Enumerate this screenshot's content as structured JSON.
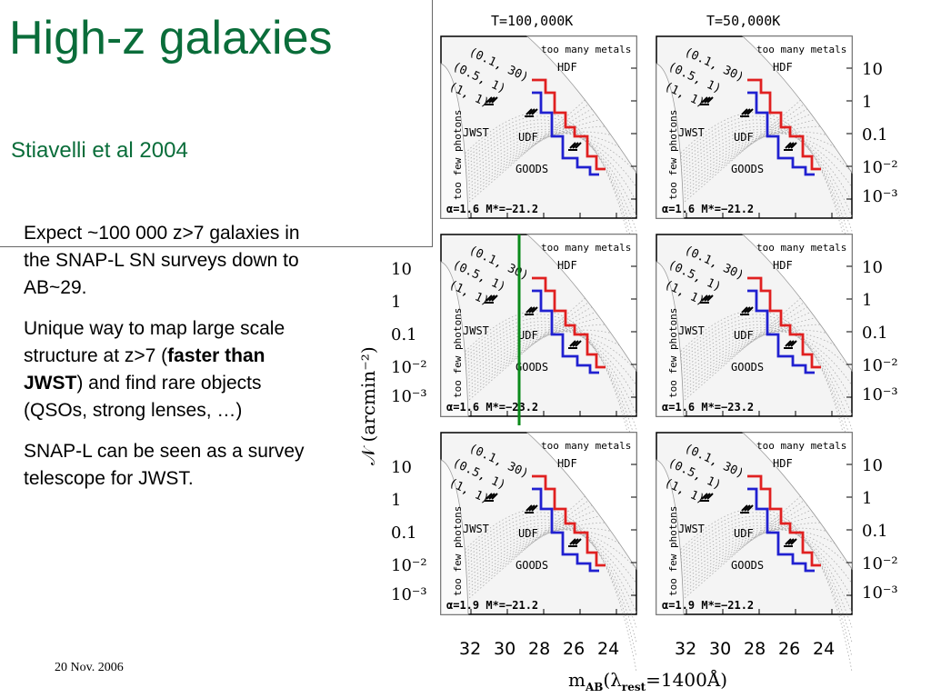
{
  "slide": {
    "title": "High-z galaxies",
    "subtitle": "Stiavelli et al 2004",
    "date": "20 Nov. 2006",
    "body": {
      "para1": "Expect ~100 000  z>7 galaxies in the SNAP-L SN surveys down to AB~29.",
      "para2_pre": "Unique way to map large scale structure at z>7 (",
      "para2_bold": "faster than JWST",
      "para2_post": ") and find rare objects (QSOs, strong lenses, …)",
      "para3": "SNAP-L can be seen as a survey telescope for JWST."
    }
  },
  "figure": {
    "col_headers": [
      "T=100,000K",
      "T=50,000K"
    ],
    "y_ticks": [
      "10",
      "1",
      "0.1",
      "10⁻²",
      "10⁻³"
    ],
    "x_ticks": [
      "32",
      "30",
      "28",
      "26",
      "24"
    ],
    "y_axis_label": "𝒩 (arcmin⁻²)",
    "x_axis_label": "m",
    "x_axis_sub": "AB",
    "x_axis_rest": "(λ",
    "x_axis_rest_sub": "rest",
    "x_axis_end": "=1400Å)",
    "panel_labels": {
      "too_many_metals": "too many metals",
      "too_few_photons": "too few photons",
      "hdf": "HDF",
      "udf": "UDF",
      "goods": "GOODS",
      "jwst": "JWST",
      "imf1": "(0.1, 30)",
      "imf2": "(0.5, 1)",
      "imf3": "(1, 1)"
    },
    "row_params": [
      "α=1.6  M*=−21.2",
      "α=1.6  M*=−23.2",
      "α=1.9  M*=−21.2"
    ],
    "colors": {
      "hdf_line": "#e02020",
      "udf_line": "#2020d0",
      "marker_line": "#0a8a1a",
      "title": "#0a6d3a"
    }
  }
}
